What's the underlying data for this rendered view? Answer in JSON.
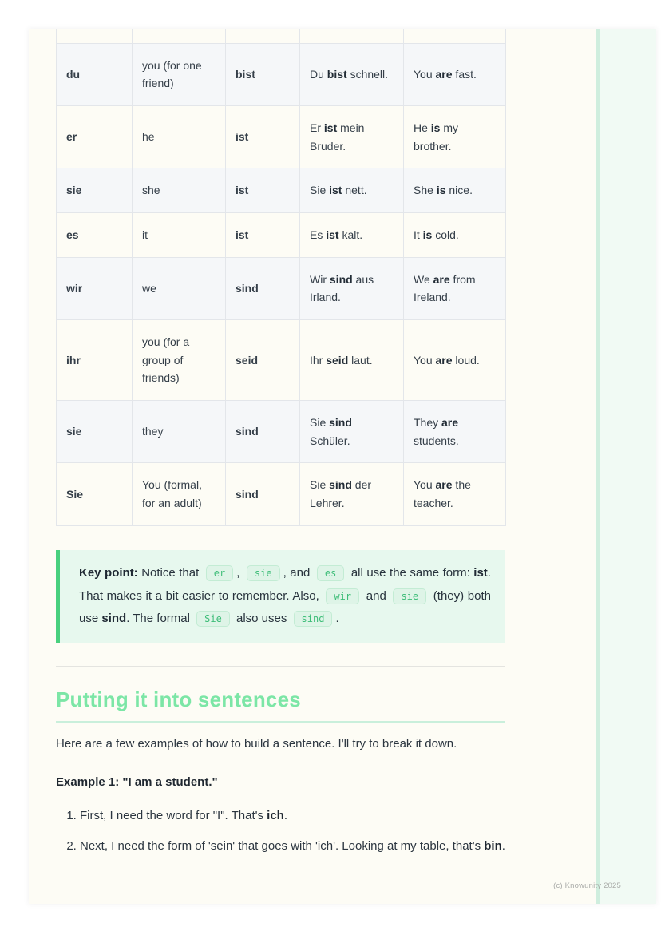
{
  "page": {
    "watermark": "(c) Knowunity 2025"
  },
  "colors": {
    "page_bg": "#fdfcf5",
    "accent_green": "#48d07e",
    "heading_green": "#7ce6a6",
    "heading_underline": "#c9efdb",
    "callout_bg": "#e7f8ee",
    "chip_text": "#3dbd78",
    "chip_bg": "#def4e7",
    "chip_border": "#c3ecd4",
    "table_alt_row_bg": "#f5f7f9",
    "table_border": "#e3e6ea",
    "side_rule": "#cfeede",
    "side_strip": "#f1faf4"
  },
  "table": {
    "rows": [
      {
        "pronoun": "du",
        "meaning": "you (for one friend)",
        "form": "bist",
        "example_de": [
          {
            "t": "Du "
          },
          {
            "t": "bist",
            "s": "b"
          },
          {
            "t": " schnell."
          }
        ],
        "example_en": [
          {
            "t": "You "
          },
          {
            "t": "are",
            "s": "b"
          },
          {
            "t": " fast."
          }
        ]
      },
      {
        "pronoun": "er",
        "meaning": "he",
        "form": "ist",
        "example_de": [
          {
            "t": "Er "
          },
          {
            "t": "ist",
            "s": "b"
          },
          {
            "t": " mein Bruder."
          }
        ],
        "example_en": [
          {
            "t": "He "
          },
          {
            "t": "is",
            "s": "b"
          },
          {
            "t": " my brother."
          }
        ]
      },
      {
        "pronoun": "sie",
        "meaning": "she",
        "form": "ist",
        "example_de": [
          {
            "t": "Sie "
          },
          {
            "t": "ist",
            "s": "b"
          },
          {
            "t": " nett."
          }
        ],
        "example_en": [
          {
            "t": "She "
          },
          {
            "t": "is",
            "s": "b"
          },
          {
            "t": " nice."
          }
        ]
      },
      {
        "pronoun": "es",
        "meaning": "it",
        "form": "ist",
        "example_de": [
          {
            "t": "Es "
          },
          {
            "t": "ist",
            "s": "b"
          },
          {
            "t": " kalt."
          }
        ],
        "example_en": [
          {
            "t": "It "
          },
          {
            "t": "is",
            "s": "b"
          },
          {
            "t": " cold."
          }
        ]
      },
      {
        "pronoun": "wir",
        "meaning": "we",
        "form": "sind",
        "example_de": [
          {
            "t": "Wir "
          },
          {
            "t": "sind",
            "s": "b"
          },
          {
            "t": " aus Irland."
          }
        ],
        "example_en": [
          {
            "t": "We "
          },
          {
            "t": "are",
            "s": "b"
          },
          {
            "t": " from Ireland."
          }
        ]
      },
      {
        "pronoun": "ihr",
        "meaning": "you (for a group of friends)",
        "form": "seid",
        "example_de": [
          {
            "t": "Ihr "
          },
          {
            "t": "seid",
            "s": "b"
          },
          {
            "t": " laut."
          }
        ],
        "example_en": [
          {
            "t": "You "
          },
          {
            "t": "are",
            "s": "b"
          },
          {
            "t": " loud."
          }
        ]
      },
      {
        "pronoun": "sie",
        "meaning": "they",
        "form": "sind",
        "example_de": [
          {
            "t": "Sie "
          },
          {
            "t": "sind",
            "s": "b"
          },
          {
            "t": " Schüler."
          }
        ],
        "example_en": [
          {
            "t": "They "
          },
          {
            "t": "are",
            "s": "b"
          },
          {
            "t": " students."
          }
        ]
      },
      {
        "pronoun": "Sie",
        "meaning": "You (formal, for an adult)",
        "form": "sind",
        "example_de": [
          {
            "t": "Sie "
          },
          {
            "t": "sind",
            "s": "b"
          },
          {
            "t": " der Lehrer."
          }
        ],
        "example_en": [
          {
            "t": "You "
          },
          {
            "t": "are",
            "s": "b"
          },
          {
            "t": " the teacher."
          }
        ]
      }
    ]
  },
  "keypoint": {
    "segments": [
      {
        "t": "Key point:",
        "s": "b"
      },
      {
        "t": " Notice that ",
        "s": null
      },
      {
        "t": "er",
        "s": "code"
      },
      {
        "t": ", ",
        "s": null
      },
      {
        "t": "sie",
        "s": "code"
      },
      {
        "t": ", and ",
        "s": null
      },
      {
        "t": "es",
        "s": "code"
      },
      {
        "t": " all use the same form: ",
        "s": null
      },
      {
        "t": "ist",
        "s": "b"
      },
      {
        "t": ". That makes it a bit easier to remember. Also, ",
        "s": null
      },
      {
        "t": "wir",
        "s": "code"
      },
      {
        "t": " and ",
        "s": null
      },
      {
        "t": "sie",
        "s": "code"
      },
      {
        "t": " (they) both use ",
        "s": null
      },
      {
        "t": "sind",
        "s": "b"
      },
      {
        "t": ". The formal ",
        "s": null
      },
      {
        "t": "Sie",
        "s": "code"
      },
      {
        "t": " also uses ",
        "s": null
      },
      {
        "t": "sind",
        "s": "code"
      },
      {
        "t": ".",
        "s": null
      }
    ]
  },
  "section": {
    "heading": "Putting it into sentences",
    "intro": "Here are a few examples of how to build a sentence. I'll try to break it down.",
    "example_title": "Example 1: \"I am a student.\"",
    "steps": [
      {
        "segments": [
          {
            "t": "First, I need the word for \"I\". That's ",
            "s": null
          },
          {
            "t": "ich",
            "s": "b"
          },
          {
            "t": ".",
            "s": null
          }
        ]
      },
      {
        "segments": [
          {
            "t": "Next, I need the form of 'sein' that goes with 'ich'. Looking at my table, that's ",
            "s": null
          },
          {
            "t": "bin",
            "s": "b"
          },
          {
            "t": ".",
            "s": null
          }
        ]
      }
    ]
  }
}
